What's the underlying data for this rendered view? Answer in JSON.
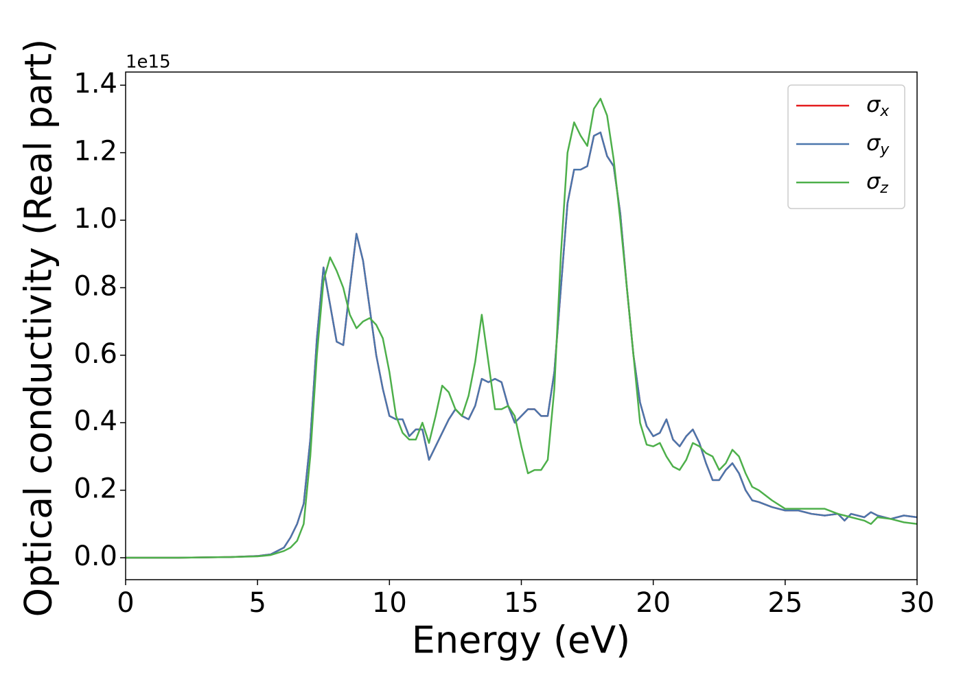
{
  "chart_data": {
    "type": "line",
    "xlabel": "Energy (eV)",
    "ylabel": "Optical conductivity (Real part)",
    "y_offset_label": "1e15",
    "xlim": [
      0,
      30
    ],
    "ylim": [
      -0.065,
      1.439
    ],
    "xticks": [
      0,
      5,
      10,
      15,
      20,
      25,
      30
    ],
    "yticks": [
      {
        "value": 0,
        "label": "0.0"
      },
      0.2,
      0.4,
      0.6,
      0.8,
      {
        "value": 1,
        "label": "1.0"
      },
      1.2,
      1.4
    ],
    "legend": "upper right",
    "x": [
      0,
      1,
      2,
      3,
      4,
      5,
      5.5,
      6,
      6.25,
      6.5,
      6.75,
      7,
      7.25,
      7.5,
      7.75,
      8,
      8.25,
      8.5,
      8.75,
      9,
      9.25,
      9.5,
      9.75,
      10,
      10.25,
      10.5,
      10.75,
      11,
      11.25,
      11.5,
      11.75,
      12,
      12.25,
      12.5,
      12.75,
      13,
      13.25,
      13.5,
      13.75,
      14,
      14.25,
      14.5,
      14.75,
      15,
      15.25,
      15.5,
      15.75,
      16,
      16.25,
      16.5,
      16.75,
      17,
      17.25,
      17.5,
      17.75,
      18,
      18.25,
      18.5,
      18.75,
      19,
      19.25,
      19.5,
      19.75,
      20,
      20.25,
      20.5,
      20.75,
      21,
      21.25,
      21.5,
      21.75,
      22,
      22.25,
      22.5,
      22.75,
      23,
      23.25,
      23.5,
      23.75,
      24,
      24.5,
      25,
      25.5,
      26,
      26.5,
      27,
      27.25,
      27.5,
      28,
      28.25,
      28.5,
      29,
      29.5,
      30
    ],
    "series": [
      {
        "name": "σx",
        "color": "#e41a1c",
        "values": [
          0,
          0,
          0,
          0.001,
          0.002,
          0.005,
          0.01,
          0.03,
          0.06,
          0.1,
          0.16,
          0.35,
          0.65,
          0.86,
          0.75,
          0.64,
          0.63,
          0.8,
          0.96,
          0.88,
          0.74,
          0.6,
          0.5,
          0.42,
          0.41,
          0.41,
          0.36,
          0.38,
          0.38,
          0.29,
          0.33,
          0.37,
          0.41,
          0.44,
          0.42,
          0.41,
          0.45,
          0.53,
          0.52,
          0.53,
          0.52,
          0.45,
          0.4,
          0.42,
          0.44,
          0.44,
          0.42,
          0.42,
          0.55,
          0.8,
          1.05,
          1.15,
          1.15,
          1.16,
          1.25,
          1.26,
          1.19,
          1.16,
          1.02,
          0.8,
          0.6,
          0.46,
          0.39,
          0.36,
          0.37,
          0.41,
          0.35,
          0.33,
          0.36,
          0.38,
          0.34,
          0.28,
          0.23,
          0.23,
          0.26,
          0.28,
          0.25,
          0.2,
          0.17,
          0.165,
          0.15,
          0.14,
          0.14,
          0.13,
          0.125,
          0.13,
          0.11,
          0.13,
          0.12,
          0.135,
          0.125,
          0.115,
          0.125,
          0.12
        ]
      },
      {
        "name": "σy",
        "color": "#4a76ac",
        "values": [
          0,
          0,
          0,
          0.001,
          0.002,
          0.005,
          0.01,
          0.03,
          0.06,
          0.1,
          0.16,
          0.35,
          0.65,
          0.86,
          0.75,
          0.64,
          0.63,
          0.8,
          0.96,
          0.88,
          0.74,
          0.6,
          0.5,
          0.42,
          0.41,
          0.41,
          0.36,
          0.38,
          0.38,
          0.29,
          0.33,
          0.37,
          0.41,
          0.44,
          0.42,
          0.41,
          0.45,
          0.53,
          0.52,
          0.53,
          0.52,
          0.45,
          0.4,
          0.42,
          0.44,
          0.44,
          0.42,
          0.42,
          0.55,
          0.8,
          1.05,
          1.15,
          1.15,
          1.16,
          1.25,
          1.26,
          1.19,
          1.16,
          1.02,
          0.8,
          0.6,
          0.46,
          0.39,
          0.36,
          0.37,
          0.41,
          0.35,
          0.33,
          0.36,
          0.38,
          0.34,
          0.28,
          0.23,
          0.23,
          0.26,
          0.28,
          0.25,
          0.2,
          0.17,
          0.165,
          0.15,
          0.14,
          0.14,
          0.13,
          0.125,
          0.13,
          0.11,
          0.13,
          0.12,
          0.135,
          0.125,
          0.115,
          0.125,
          0.12
        ]
      },
      {
        "name": "σz",
        "color": "#4daf4a",
        "values": [
          0,
          0,
          0,
          0.001,
          0.002,
          0.004,
          0.008,
          0.02,
          0.03,
          0.05,
          0.1,
          0.3,
          0.6,
          0.82,
          0.89,
          0.85,
          0.8,
          0.72,
          0.68,
          0.7,
          0.71,
          0.69,
          0.65,
          0.55,
          0.42,
          0.37,
          0.35,
          0.35,
          0.4,
          0.34,
          0.42,
          0.51,
          0.49,
          0.44,
          0.42,
          0.48,
          0.58,
          0.72,
          0.58,
          0.44,
          0.44,
          0.45,
          0.42,
          0.33,
          0.25,
          0.26,
          0.26,
          0.29,
          0.5,
          0.9,
          1.2,
          1.29,
          1.25,
          1.22,
          1.33,
          1.36,
          1.31,
          1.18,
          1,
          0.8,
          0.6,
          0.4,
          0.335,
          0.33,
          0.34,
          0.3,
          0.27,
          0.26,
          0.29,
          0.34,
          0.33,
          0.31,
          0.3,
          0.26,
          0.28,
          0.32,
          0.3,
          0.25,
          0.21,
          0.2,
          0.17,
          0.145,
          0.145,
          0.145,
          0.145,
          0.13,
          0.125,
          0.12,
          0.11,
          0.1,
          0.12,
          0.115,
          0.105,
          0.1
        ]
      }
    ]
  }
}
